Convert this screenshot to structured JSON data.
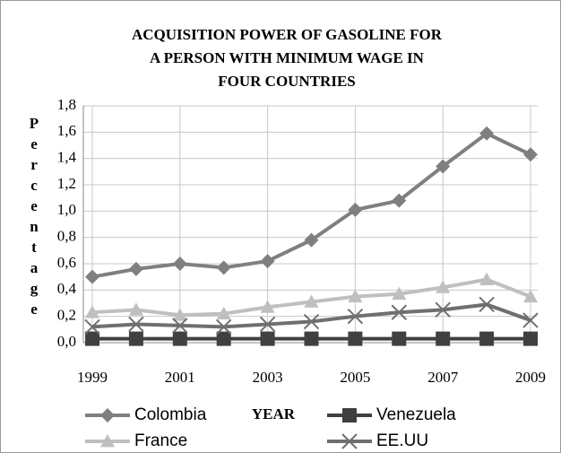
{
  "chart_data": {
    "type": "line",
    "title": [
      "ACQUISITION POWER OF GASOLINE FOR",
      "A PERSON WITH MINIMUM WAGE IN",
      "FOUR COUNTRIES"
    ],
    "x_label": "YEAR",
    "y_label": "Percentage",
    "x": [
      1999,
      2000,
      2001,
      2002,
      2003,
      2004,
      2005,
      2006,
      2007,
      2008,
      2009
    ],
    "xlim": [
      1999,
      2009
    ],
    "xticks": [
      1999,
      2001,
      2003,
      2005,
      2007,
      2009
    ],
    "ylim": [
      0,
      1.8
    ],
    "yticks": [
      {
        "value": 0,
        "label": "0,0"
      },
      {
        "value": 0.2,
        "label": "0,2"
      },
      {
        "value": 0.4,
        "label": "0,4"
      },
      {
        "value": 0.6,
        "label": "0,6"
      },
      {
        "value": 0.8,
        "label": "0,8"
      },
      {
        "value": 1.0,
        "label": "1,0"
      },
      {
        "value": 1.2,
        "label": "1,2"
      },
      {
        "value": 1.4,
        "label": "1,4"
      },
      {
        "value": 1.6,
        "label": "1,6"
      },
      {
        "value": 1.8,
        "label": "1,8"
      }
    ],
    "grid": true,
    "series": [
      {
        "name": "Colombia",
        "color": "#7f7f7f",
        "marker": "diamond",
        "values": [
          0.5,
          0.56,
          0.6,
          0.57,
          0.62,
          0.78,
          1.01,
          1.08,
          1.34,
          1.59,
          1.43
        ]
      },
      {
        "name": "Venezuela",
        "color": "#404040",
        "marker": "square",
        "values": [
          0.03,
          0.03,
          0.03,
          0.03,
          0.03,
          0.03,
          0.03,
          0.03,
          0.03,
          0.03,
          0.03
        ]
      },
      {
        "name": "France",
        "color": "#bfbfbf",
        "marker": "triangle",
        "values": [
          0.23,
          0.25,
          0.21,
          0.22,
          0.27,
          0.31,
          0.35,
          0.37,
          0.42,
          0.48,
          0.35
        ]
      },
      {
        "name": "EE.UU",
        "color": "#6f6f6f",
        "marker": "x",
        "values": [
          0.12,
          0.14,
          0.13,
          0.12,
          0.14,
          0.16,
          0.2,
          0.23,
          0.25,
          0.29,
          0.17
        ]
      }
    ]
  }
}
